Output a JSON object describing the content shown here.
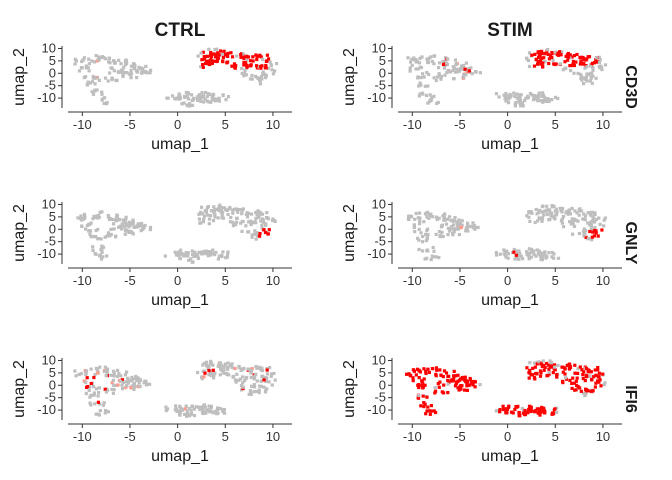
{
  "chart_data": {
    "type": "scatter",
    "columns": [
      "CTRL",
      "STIM"
    ],
    "rows": [
      "CD3D",
      "GNLY",
      "IFI6"
    ],
    "xlabel": "umap_1",
    "ylabel": "umap_2",
    "xlim": [
      -11.5,
      12
    ],
    "ylim": [
      -14,
      11
    ],
    "x_ticks": [
      -10,
      -5,
      0,
      5,
      10
    ],
    "y_ticks": [
      -10,
      -5,
      0,
      5,
      10
    ],
    "colors": {
      "background": "#bebebe",
      "expressing": "#ff0000",
      "light_expressing": "#ff9a8a"
    },
    "clusters": [
      {
        "name": "left",
        "points": [
          [
            -10,
            5
          ],
          [
            -9,
            5.5
          ],
          [
            -8,
            6
          ],
          [
            -7,
            5
          ],
          [
            -6,
            4.5
          ],
          [
            -5,
            3
          ],
          [
            -4,
            1.5
          ],
          [
            -3.6,
            0.5
          ],
          [
            -9.5,
            2
          ],
          [
            -9,
            -1
          ],
          [
            -8.8,
            -4
          ],
          [
            -8.5,
            -8
          ],
          [
            -8,
            -11
          ],
          [
            -7,
            -2
          ],
          [
            -6.5,
            1
          ],
          [
            -5.5,
            0.5
          ],
          [
            -5,
            -1
          ],
          [
            -4.5,
            2
          ]
        ]
      },
      {
        "name": "right",
        "points": [
          [
            3,
            8
          ],
          [
            4,
            8.5
          ],
          [
            5,
            8
          ],
          [
            6,
            7.5
          ],
          [
            7,
            7
          ],
          [
            8,
            6.5
          ],
          [
            9,
            6
          ],
          [
            9.6,
            4
          ],
          [
            9.5,
            1
          ],
          [
            8.8,
            -1.5
          ],
          [
            8.2,
            -3
          ],
          [
            7.5,
            -1
          ],
          [
            6.5,
            2
          ],
          [
            5.5,
            4
          ],
          [
            4,
            5
          ],
          [
            3,
            3.5
          ],
          [
            2.8,
            6
          ],
          [
            4.5,
            7
          ],
          [
            7.5,
            4
          ],
          [
            8.5,
            3
          ]
        ]
      },
      {
        "name": "bottom",
        "points": [
          [
            -0.5,
            -9.5
          ],
          [
            0.5,
            -9
          ],
          [
            1.5,
            -9.5
          ],
          [
            2.5,
            -10
          ],
          [
            3,
            -9
          ],
          [
            4,
            -10
          ],
          [
            3.5,
            -11
          ],
          [
            1.5,
            -12
          ],
          [
            0.5,
            -11
          ],
          [
            4.6,
            -10.5
          ]
        ]
      }
    ],
    "panels": [
      {
        "row": "CD3D",
        "column": "STIM",
        "expression": [
          {
            "cluster": "right",
            "level": 0.85,
            "density": 0.9,
            "bounds": [
              2.5,
              9.5,
              2.5,
              9
            ]
          },
          {
            "cluster": "left",
            "level": 0.1,
            "density": 0.05,
            "bounds": [
              -10,
              -4,
              -10,
              6
            ]
          }
        ]
      },
      {
        "row": "CD3D",
        "column": "CTRL",
        "expression": [
          {
            "cluster": "right",
            "level": 0.85,
            "density": 0.95,
            "bounds": [
              2.5,
              9.8,
              2,
              9
            ]
          },
          {
            "cluster": "left",
            "level": 0.1,
            "density": 0.05,
            "bounds": [
              -10,
              -4,
              -10,
              6
            ]
          }
        ]
      },
      {
        "row": "GNLY",
        "column": "CTRL",
        "expression": [
          {
            "cluster": "right",
            "level": 0.9,
            "density": 0.9,
            "bounds": [
              8.5,
              10,
              -3.5,
              0
            ]
          },
          {
            "cluster": "left",
            "level": 0.2,
            "density": 0.04,
            "bounds": [
              -9.5,
              -7,
              -2,
              2
            ]
          }
        ]
      },
      {
        "row": "GNLY",
        "column": "STIM",
        "expression": [
          {
            "cluster": "right",
            "level": 0.9,
            "density": 0.9,
            "bounds": [
              8.2,
              10,
              -3.5,
              0
            ]
          },
          {
            "cluster": "left",
            "level": 0.2,
            "density": 0.04,
            "bounds": [
              -6,
              -4.5,
              -1,
              2
            ]
          },
          {
            "cluster": "bottom",
            "level": 0.2,
            "density": 0.15,
            "bounds": [
              0,
              1,
              -11,
              -8
            ]
          }
        ]
      },
      {
        "row": "IFI6",
        "column": "CTRL",
        "expression": [
          {
            "cluster": "left",
            "level": 0.25,
            "density": 0.18,
            "bounds": [
              -10,
              -4,
              -10,
              6
            ]
          },
          {
            "cluster": "right",
            "level": 0.2,
            "density": 0.06,
            "bounds": [
              2.5,
              9.5,
              -3,
              9
            ]
          },
          {
            "cluster": "bottom",
            "level": 0.3,
            "density": 0.2,
            "bounds": [
              0,
              2,
              -12,
              -9
            ]
          }
        ]
      },
      {
        "row": "IFI6",
        "column": "STIM",
        "expression": [
          {
            "cluster": "left",
            "level": 0.95,
            "density": 0.97,
            "bounds": [
              -11,
              -3,
              -12,
              7
            ]
          },
          {
            "cluster": "right",
            "level": 0.95,
            "density": 0.95,
            "bounds": [
              2,
              10,
              -3,
              9
            ]
          },
          {
            "cluster": "bottom",
            "level": 0.95,
            "density": 0.95,
            "bounds": [
              -1,
              5,
              -13,
              -8
            ]
          }
        ]
      }
    ]
  }
}
